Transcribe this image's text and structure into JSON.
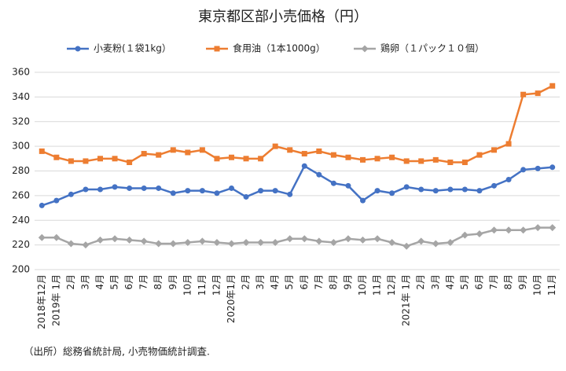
{
  "chart_data": {
    "type": "line",
    "title": "東京都区部小売価格（円）",
    "categories": [
      "2018年12月",
      "2019年 1月",
      "2月",
      "3月",
      "4月",
      "5月",
      "6月",
      "7月",
      "8月",
      "9月",
      "10月",
      "11月",
      "12月",
      "2020年1月",
      "2月",
      "3月",
      "4月",
      "5月",
      "6月",
      "7月",
      "8月",
      "9月",
      "10月",
      "11月",
      "12月",
      "2021年 1月",
      "2月",
      "3月",
      "4月",
      "5月",
      "6月",
      "7月",
      "8月",
      "9月",
      "10月",
      "11月"
    ],
    "series": [
      {
        "name": "小麦粉(１袋1kg）",
        "color": "#4472c4",
        "marker": "circle",
        "values": [
          252,
          256,
          261,
          265,
          265,
          267,
          266,
          266,
          266,
          262,
          264,
          264,
          262,
          266,
          259,
          264,
          264,
          261,
          284,
          277,
          270,
          268,
          256,
          264,
          262,
          267,
          265,
          264,
          265,
          265,
          264,
          268,
          273,
          281,
          282,
          283
        ]
      },
      {
        "name": "食用油（1本1000g）",
        "color": "#ed7d31",
        "marker": "square",
        "values": [
          296,
          291,
          288,
          288,
          290,
          290,
          287,
          294,
          293,
          297,
          295,
          297,
          290,
          291,
          290,
          290,
          300,
          297,
          294,
          296,
          293,
          291,
          289,
          290,
          291,
          288,
          288,
          289,
          287,
          287,
          293,
          297,
          302,
          342,
          343,
          349
        ]
      },
      {
        "name": "鶏卵（１パック１０個）",
        "color": "#a5a5a5",
        "marker": "diamond",
        "values": [
          226,
          226,
          221,
          220,
          224,
          225,
          224,
          223,
          221,
          221,
          222,
          223,
          222,
          221,
          222,
          222,
          222,
          225,
          225,
          223,
          222,
          225,
          224,
          225,
          222,
          219,
          223,
          221,
          222,
          228,
          229,
          232,
          232,
          232,
          234,
          234
        ]
      }
    ],
    "ylim": [
      200,
      360
    ],
    "yticks": [
      200,
      220,
      240,
      260,
      280,
      300,
      320,
      340,
      360
    ],
    "grid": true,
    "legend": "top",
    "source": "（出所）総務省統計局, 小売物価統計調査."
  }
}
